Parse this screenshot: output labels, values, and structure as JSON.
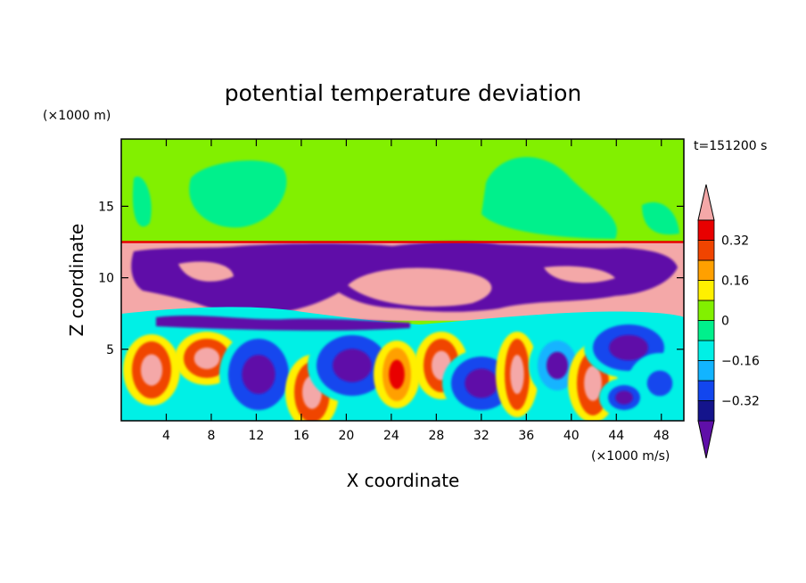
{
  "chart_data": {
    "type": "heatmap",
    "title": "potential temperature deviation",
    "xlabel": "X coordinate",
    "ylabel": "Z coordinate",
    "x_unit": "(×1000 m/s)",
    "y_unit": "(×1000 m)",
    "time_label": "t=151200 s",
    "xlim": [
      0,
      50
    ],
    "ylim": [
      0,
      19.7
    ],
    "x_ticks": [
      4,
      8,
      12,
      16,
      20,
      24,
      28,
      32,
      36,
      40,
      44,
      48
    ],
    "y_ticks": [
      5,
      10,
      15
    ],
    "colorbar": {
      "levels": [
        -0.4,
        -0.32,
        -0.24,
        -0.16,
        -0.08,
        0,
        0.08,
        0.16,
        0.24,
        0.32,
        0.4
      ],
      "tick_labels": [
        "0.32",
        "0.16",
        "0",
        "−0.16",
        "−0.32"
      ],
      "tick_values": [
        0.32,
        0.16,
        0,
        -0.16,
        -0.32
      ],
      "colors": [
        "#5f0fa8",
        "#14148c",
        "#1246ee",
        "#12b4ff",
        "#00f0e6",
        "#00f08c",
        "#82f000",
        "#fff000",
        "#ffa000",
        "#f04400",
        "#e80000",
        "#f4a8a8"
      ],
      "extend": "both"
    },
    "fields": {
      "stratosphere": {
        "z_range": [
          12.5,
          19.7
        ],
        "value": 0.02,
        "patch_value": -0.02
      },
      "tropopause_line": {
        "z": 12.5,
        "value": 0.36
      },
      "anvil_region": {
        "z_range": [
          7.0,
          12.5
        ],
        "value": 0.42,
        "cloud_value": -0.42
      },
      "boundary_layer": {
        "z_range": [
          0,
          7.0
        ],
        "description_values": [
          -0.42,
          -0.3,
          -0.2,
          -0.1,
          0,
          0.1,
          0.2,
          0.3,
          0.42
        ]
      }
    }
  }
}
